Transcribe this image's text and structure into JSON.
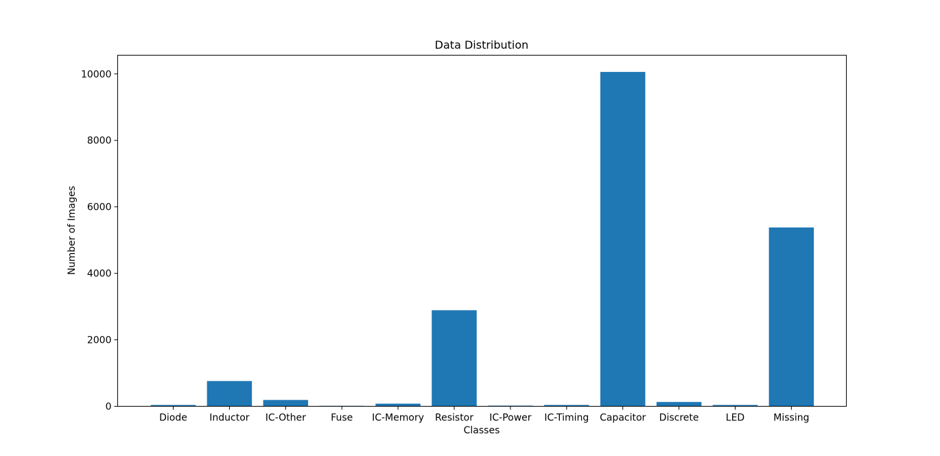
{
  "chart_data": {
    "type": "bar",
    "title": "Data Distribution",
    "xlabel": "Classes",
    "ylabel": "Number of Images",
    "categories": [
      "Diode",
      "Inductor",
      "IC-Other",
      "Fuse",
      "IC-Memory",
      "Resistor",
      "IC-Power",
      "IC-Timing",
      "Capacitor",
      "Discrete",
      "LED",
      "Missing"
    ],
    "values": [
      40,
      760,
      190,
      15,
      80,
      2890,
      20,
      40,
      10060,
      130,
      40,
      5380
    ],
    "ylim": [
      0,
      10563
    ],
    "yticks": [
      0,
      2000,
      4000,
      6000,
      8000,
      10000
    ],
    "bar_color": "#1f77b4",
    "grid": false,
    "legend": "none"
  }
}
